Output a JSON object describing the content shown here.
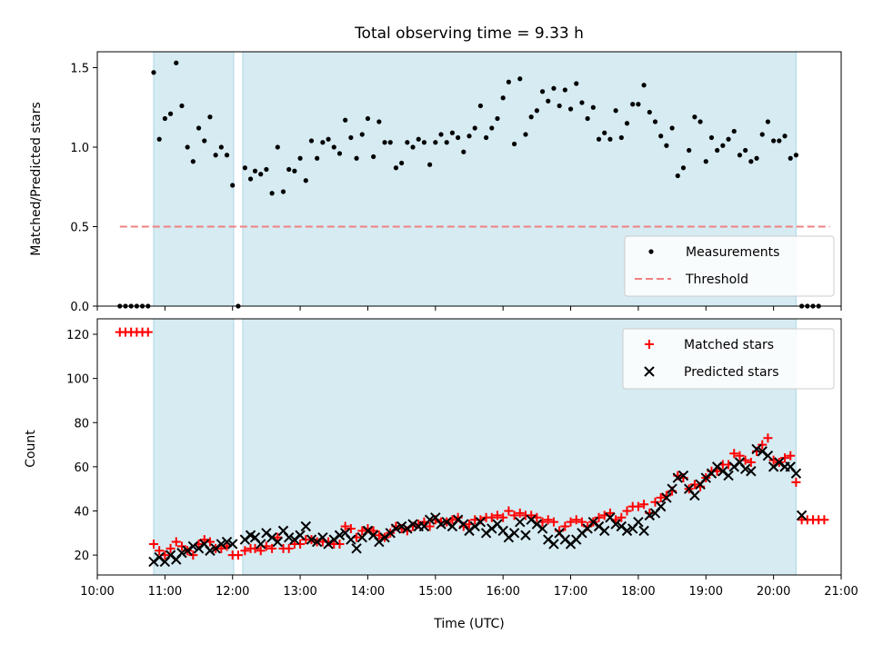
{
  "chart_data": [
    {
      "type": "scatter",
      "title": "Total observing time = 9.33 h",
      "ylabel": "Matched/Predicted stars",
      "xlabel": "",
      "xlim": [
        "10:00",
        "21:00"
      ],
      "ylim": [
        0,
        1.6
      ],
      "yticks": [
        "0.0",
        "0.5",
        "1.0",
        "1.5"
      ],
      "shaded_intervals": [
        [
          "10:50",
          "12:01"
        ],
        [
          "12:09",
          "20:20"
        ]
      ],
      "threshold": {
        "name": "Threshold",
        "y": 0.5,
        "x_start": "10:20",
        "x_end": "20:50",
        "color": "#f08080"
      },
      "legend": {
        "position": "lower-right",
        "entries": [
          "Measurements",
          "Threshold"
        ]
      },
      "series": [
        {
          "name": "Measurements",
          "color": "#000000",
          "marker": "dot",
          "x": [
            "10:20",
            "10:25",
            "10:30",
            "10:35",
            "10:40",
            "10:45",
            "10:50",
            "10:55",
            "11:00",
            "11:05",
            "11:10",
            "11:15",
            "11:20",
            "11:25",
            "11:30",
            "11:35",
            "11:40",
            "11:45",
            "11:50",
            "11:55",
            "12:00",
            "12:05",
            "12:11",
            "12:16",
            "12:20",
            "12:25",
            "12:30",
            "12:35",
            "12:40",
            "12:45",
            "12:50",
            "12:55",
            "13:00",
            "13:05",
            "13:10",
            "13:15",
            "13:20",
            "13:25",
            "13:30",
            "13:35",
            "13:40",
            "13:45",
            "13:50",
            "13:55",
            "14:00",
            "14:05",
            "14:10",
            "14:15",
            "14:20",
            "14:25",
            "14:30",
            "14:35",
            "14:40",
            "14:45",
            "14:50",
            "14:55",
            "15:00",
            "15:05",
            "15:10",
            "15:15",
            "15:20",
            "15:25",
            "15:30",
            "15:35",
            "15:40",
            "15:45",
            "15:50",
            "15:55",
            "16:00",
            "16:05",
            "16:10",
            "16:15",
            "16:20",
            "16:25",
            "16:30",
            "16:35",
            "16:40",
            "16:45",
            "16:50",
            "16:55",
            "17:00",
            "17:05",
            "17:10",
            "17:15",
            "17:20",
            "17:25",
            "17:30",
            "17:35",
            "17:40",
            "17:45",
            "17:50",
            "17:55",
            "18:00",
            "18:05",
            "18:10",
            "18:15",
            "18:20",
            "18:25",
            "18:30",
            "18:35",
            "18:40",
            "18:45",
            "18:50",
            "18:55",
            "19:00",
            "19:05",
            "19:10",
            "19:15",
            "19:20",
            "19:25",
            "19:30",
            "19:35",
            "19:40",
            "19:45",
            "19:50",
            "19:55",
            "20:00",
            "20:05",
            "20:10",
            "20:15",
            "20:20",
            "20:25",
            "20:30",
            "20:35",
            "20:40"
          ],
          "y": [
            0,
            0,
            0,
            0,
            0,
            0,
            1.47,
            1.05,
            1.18,
            1.21,
            1.53,
            1.26,
            1.0,
            0.91,
            1.12,
            1.04,
            1.19,
            0.95,
            1.0,
            0.95,
            0.76,
            0.0,
            0.87,
            0.8,
            0.85,
            0.83,
            0.86,
            0.71,
            1.0,
            0.72,
            0.86,
            0.85,
            0.93,
            0.79,
            1.04,
            0.93,
            1.03,
            1.05,
            1.0,
            0.96,
            1.17,
            1.06,
            0.93,
            1.08,
            1.18,
            0.94,
            1.16,
            1.03,
            1.03,
            0.87,
            0.9,
            1.03,
            1.0,
            1.05,
            1.03,
            0.89,
            1.03,
            1.08,
            1.03,
            1.09,
            1.06,
            0.97,
            1.07,
            1.12,
            1.26,
            1.06,
            1.12,
            1.18,
            1.31,
            1.41,
            1.02,
            1.43,
            1.08,
            1.19,
            1.23,
            1.35,
            1.29,
            1.37,
            1.26,
            1.36,
            1.24,
            1.4,
            1.28,
            1.18,
            1.25,
            1.05,
            1.09,
            1.05,
            1.23,
            1.06,
            1.15,
            1.27,
            1.27,
            1.39,
            1.22,
            1.16,
            1.07,
            1.01,
            1.12,
            0.82,
            0.87,
            0.98,
            1.19,
            1.16,
            0.91,
            1.06,
            0.98,
            1.01,
            1.05,
            1.1,
            0.95,
            0.98,
            0.91,
            0.93,
            1.08,
            1.16,
            1.04,
            1.04,
            1.07,
            0.93,
            0.95,
            0,
            0,
            0,
            0
          ]
        }
      ]
    },
    {
      "type": "scatter",
      "title": "",
      "ylabel": "Count",
      "xlabel": "Time (UTC)",
      "xlim": [
        "10:00",
        "21:00"
      ],
      "ylim": [
        11,
        127
      ],
      "yticks": [
        "20",
        "40",
        "60",
        "80",
        "100",
        "120"
      ],
      "xticks": [
        "10:00",
        "11:00",
        "12:00",
        "13:00",
        "14:00",
        "15:00",
        "16:00",
        "17:00",
        "18:00",
        "19:00",
        "20:00",
        "21:00"
      ],
      "shaded_intervals": [
        [
          "10:50",
          "12:01"
        ],
        [
          "12:09",
          "20:20"
        ]
      ],
      "legend": {
        "position": "upper-right",
        "entries": [
          "Matched stars",
          "Predicted stars"
        ]
      },
      "series": [
        {
          "name": "Matched stars",
          "color": "#ff0000",
          "marker": "plus",
          "x": [
            "10:20",
            "10:25",
            "10:30",
            "10:35",
            "10:40",
            "10:45",
            "10:50",
            "10:55",
            "11:00",
            "11:05",
            "11:10",
            "11:15",
            "11:20",
            "11:25",
            "11:30",
            "11:35",
            "11:40",
            "11:45",
            "11:50",
            "11:55",
            "12:00",
            "12:05",
            "12:11",
            "12:16",
            "12:20",
            "12:25",
            "12:30",
            "12:35",
            "12:40",
            "12:45",
            "12:50",
            "12:55",
            "13:00",
            "13:05",
            "13:10",
            "13:15",
            "13:20",
            "13:25",
            "13:30",
            "13:35",
            "13:40",
            "13:45",
            "13:50",
            "13:55",
            "14:00",
            "14:05",
            "14:10",
            "14:15",
            "14:20",
            "14:25",
            "14:30",
            "14:35",
            "14:40",
            "14:45",
            "14:50",
            "14:55",
            "15:00",
            "15:05",
            "15:10",
            "15:15",
            "15:20",
            "15:25",
            "15:30",
            "15:35",
            "15:40",
            "15:45",
            "15:50",
            "15:55",
            "16:00",
            "16:05",
            "16:10",
            "16:15",
            "16:20",
            "16:25",
            "16:30",
            "16:35",
            "16:40",
            "16:45",
            "16:50",
            "16:55",
            "17:00",
            "17:05",
            "17:10",
            "17:15",
            "17:20",
            "17:25",
            "17:30",
            "17:35",
            "17:40",
            "17:45",
            "17:50",
            "17:55",
            "18:00",
            "18:05",
            "18:10",
            "18:15",
            "18:20",
            "18:25",
            "18:30",
            "18:35",
            "18:40",
            "18:45",
            "18:50",
            "18:55",
            "19:00",
            "19:05",
            "19:10",
            "19:15",
            "19:20",
            "19:25",
            "19:30",
            "19:35",
            "19:40",
            "19:45",
            "19:50",
            "19:55",
            "20:00",
            "20:05",
            "20:10",
            "20:15",
            "20:20",
            "20:25",
            "20:30",
            "20:35",
            "20:40",
            "20:45"
          ],
          "y": [
            121,
            121,
            121,
            121,
            121,
            121,
            25,
            22,
            20,
            23,
            26,
            24,
            22,
            20,
            25,
            27,
            26,
            23,
            23,
            24,
            20,
            20,
            22,
            23,
            23,
            22,
            24,
            23,
            28,
            23,
            23,
            25,
            25,
            27,
            27,
            26,
            26,
            26,
            25,
            25,
            33,
            32,
            28,
            31,
            32,
            31,
            29,
            28,
            30,
            33,
            32,
            31,
            33,
            34,
            35,
            33,
            36,
            35,
            35,
            36,
            37,
            33,
            34,
            36,
            36,
            37,
            37,
            38,
            37,
            40,
            38,
            39,
            38,
            38,
            37,
            35,
            36,
            35,
            31,
            33,
            35,
            36,
            35,
            33,
            35,
            37,
            38,
            39,
            36,
            37,
            40,
            42,
            42,
            43,
            39,
            44,
            46,
            47,
            49,
            56,
            55,
            50,
            52,
            51,
            55,
            58,
            58,
            61,
            61,
            66,
            65,
            63,
            62,
            67,
            70,
            73,
            63,
            62,
            64,
            65,
            53,
            36,
            36,
            36,
            36,
            36
          ]
        },
        {
          "name": "Predicted stars",
          "color": "#000000",
          "marker": "x",
          "x": [
            "10:50",
            "10:55",
            "11:00",
            "11:05",
            "11:10",
            "11:15",
            "11:20",
            "11:25",
            "11:30",
            "11:35",
            "11:40",
            "11:45",
            "11:50",
            "11:55",
            "12:00",
            "12:11",
            "12:16",
            "12:20",
            "12:25",
            "12:30",
            "12:35",
            "12:40",
            "12:45",
            "12:50",
            "12:55",
            "13:00",
            "13:05",
            "13:10",
            "13:15",
            "13:20",
            "13:25",
            "13:30",
            "13:35",
            "13:40",
            "13:45",
            "13:50",
            "13:55",
            "14:00",
            "14:05",
            "14:10",
            "14:15",
            "14:20",
            "14:25",
            "14:30",
            "14:35",
            "14:40",
            "14:45",
            "14:50",
            "14:55",
            "15:00",
            "15:05",
            "15:10",
            "15:15",
            "15:20",
            "15:25",
            "15:30",
            "15:35",
            "15:40",
            "15:45",
            "15:50",
            "15:55",
            "16:00",
            "16:05",
            "16:10",
            "16:15",
            "16:20",
            "16:25",
            "16:30",
            "16:35",
            "16:40",
            "16:45",
            "16:50",
            "16:55",
            "17:00",
            "17:05",
            "17:10",
            "17:15",
            "17:20",
            "17:25",
            "17:30",
            "17:35",
            "17:40",
            "17:45",
            "17:50",
            "17:55",
            "18:00",
            "18:05",
            "18:10",
            "18:15",
            "18:20",
            "18:25",
            "18:30",
            "18:35",
            "18:40",
            "18:45",
            "18:50",
            "18:55",
            "19:00",
            "19:05",
            "19:10",
            "19:15",
            "19:20",
            "19:25",
            "19:30",
            "19:35",
            "19:40",
            "19:45",
            "19:50",
            "19:55",
            "20:00",
            "20:05",
            "20:10",
            "20:15",
            "20:20",
            "20:25"
          ],
          "y": [
            17,
            19,
            17,
            20,
            18,
            21,
            22,
            24,
            23,
            25,
            22,
            23,
            25,
            26,
            25,
            27,
            29,
            28,
            25,
            30,
            28,
            26,
            31,
            28,
            27,
            29,
            33,
            27,
            26,
            28,
            25,
            27,
            29,
            30,
            27,
            23,
            28,
            31,
            29,
            26,
            28,
            30,
            32,
            33,
            32,
            34,
            33,
            33,
            36,
            37,
            34,
            35,
            33,
            36,
            34,
            31,
            33,
            35,
            30,
            32,
            34,
            31,
            28,
            30,
            35,
            29,
            36,
            34,
            32,
            27,
            25,
            30,
            27,
            25,
            27,
            30,
            32,
            35,
            33,
            31,
            37,
            34,
            33,
            31,
            32,
            35,
            31,
            38,
            39,
            42,
            46,
            50,
            55,
            56,
            50,
            47,
            52,
            55,
            57,
            60,
            58,
            56,
            60,
            62,
            59,
            58,
            68,
            67,
            65,
            60,
            62,
            60,
            60,
            57,
            38
          ]
        }
      ]
    }
  ]
}
